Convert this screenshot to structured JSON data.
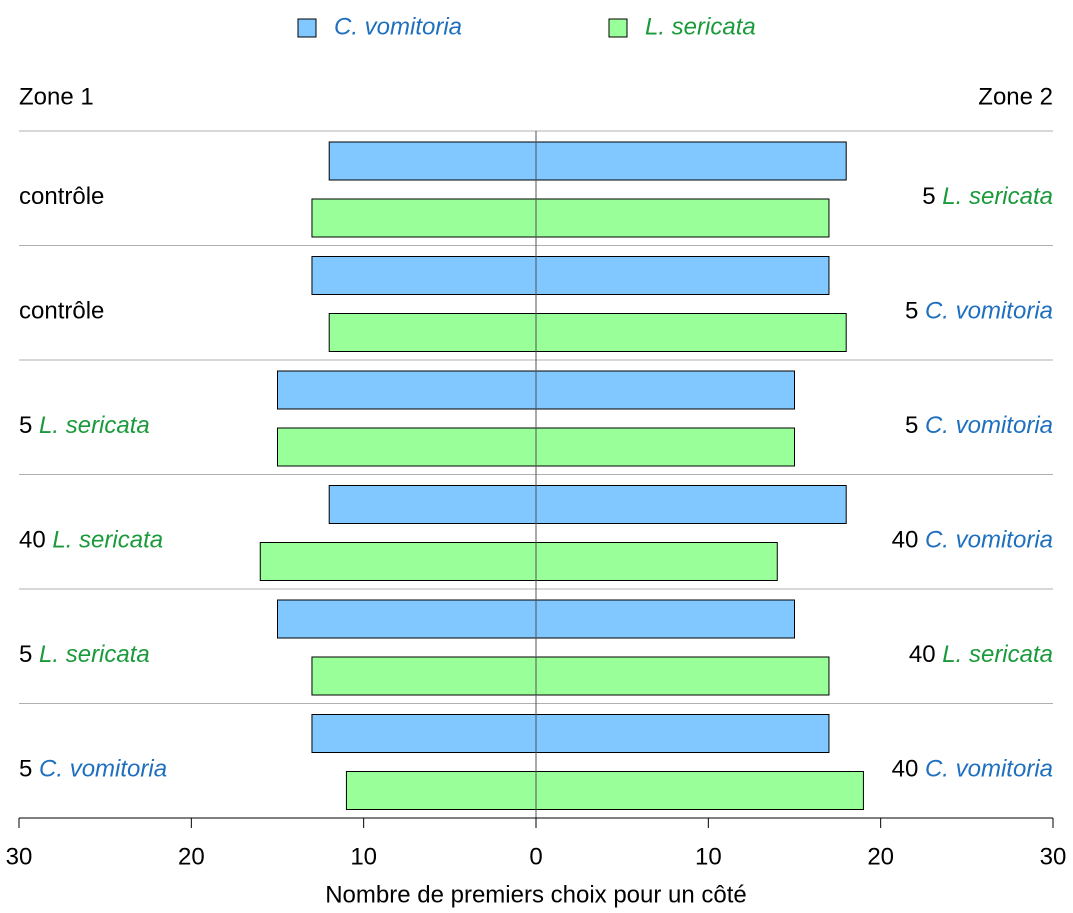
{
  "chart_data": {
    "type": "butterfly-bar",
    "zone_labels": [
      "Zone 1",
      "Zone 2"
    ],
    "x_label": "Nombre de premiers choix pour un côté",
    "xlim": [
      -30,
      30
    ],
    "xticks": [
      {
        "value": -30,
        "label": "30"
      },
      {
        "value": -20,
        "label": "20"
      },
      {
        "value": -10,
        "label": "10"
      },
      0,
      10,
      20,
      30
    ],
    "zone_1_labels": [
      {
        "text": "contrôle"
      },
      {
        "text": "contrôle"
      },
      {
        "count": "5",
        "species": "L. sericata"
      },
      {
        "count": "40",
        "species": "L. sericata"
      },
      {
        "count": "5",
        "species": "L. sericata"
      },
      {
        "count": "5",
        "species": "C. vomitoria"
      }
    ],
    "zone_2_labels": [
      {
        "count": "5",
        "species": "L. sericata"
      },
      {
        "count": "5",
        "species": "C. vomitoria"
      },
      {
        "count": "5",
        "species": "C. vomitoria"
      },
      {
        "count": "40",
        "species": "C. vomitoria"
      },
      {
        "count": "40",
        "species": "L. sericata"
      },
      {
        "count": "40",
        "species": "C. vomitoria"
      }
    ],
    "series": [
      {
        "name": "C. vomitoria",
        "color": "#80c8ff",
        "label_color": "#1f6fbf",
        "zone_1_values": [
          -12,
          -13,
          -15,
          -12,
          -15,
          -13
        ],
        "zone_2_values": [
          18,
          17,
          15,
          18,
          15,
          17
        ]
      },
      {
        "name": "L. sericata",
        "color": "#99ff99",
        "label_color": "#1a9a3a",
        "zone_1_values": [
          -13,
          -12,
          -15,
          -16,
          -13,
          -11
        ],
        "zone_2_values": [
          17,
          18,
          15,
          14,
          17,
          19
        ]
      }
    ]
  }
}
